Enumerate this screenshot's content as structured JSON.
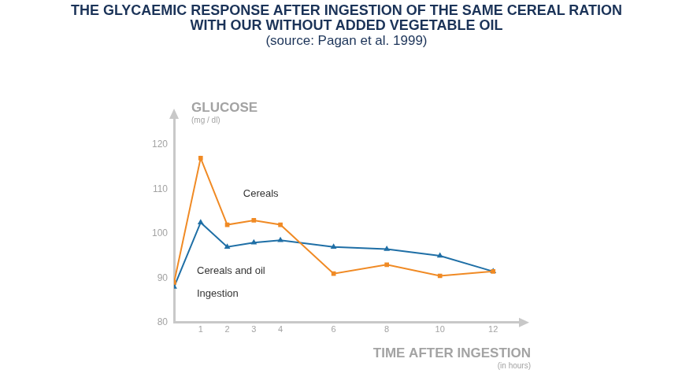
{
  "chart_data": {
    "type": "line",
    "title": [
      "THE GLYCAEMIC RESPONSE AFTER INGESTION OF THE SAME CEREAL RATION",
      "WITH OUR WITHOUT ADDED VEGETABLE OIL"
    ],
    "subtitle": "(source: Pagan et al. 1999)",
    "y_label": "GLUCOSE",
    "y_units": "(mg / dl)",
    "x_label": "TIME AFTER INGESTION",
    "x_units": "(in hours)",
    "annotations": [
      "Cereals",
      "Cereals and oil",
      "Ingestion"
    ],
    "x": [
      0,
      1,
      2,
      3,
      4,
      6,
      8,
      10,
      12
    ],
    "series": [
      {
        "name": "Cereals",
        "color": "#f08a24",
        "marker": "rect",
        "values": [
          89,
          117,
          102,
          103,
          102,
          91,
          93,
          90.5,
          91.5
        ]
      },
      {
        "name": "Cereals and oil",
        "color": "#1f6fa6",
        "marker": "triangle",
        "values": [
          88,
          102.5,
          97,
          98,
          98.5,
          97,
          96.5,
          95,
          91.5
        ]
      }
    ],
    "xlim": [
      0,
      13
    ],
    "xticks": [
      1,
      2,
      3,
      4,
      6,
      8,
      10,
      12
    ],
    "ylim": [
      80,
      126
    ],
    "yticks": [
      80,
      90,
      100,
      110,
      120
    ],
    "grid": false
  }
}
